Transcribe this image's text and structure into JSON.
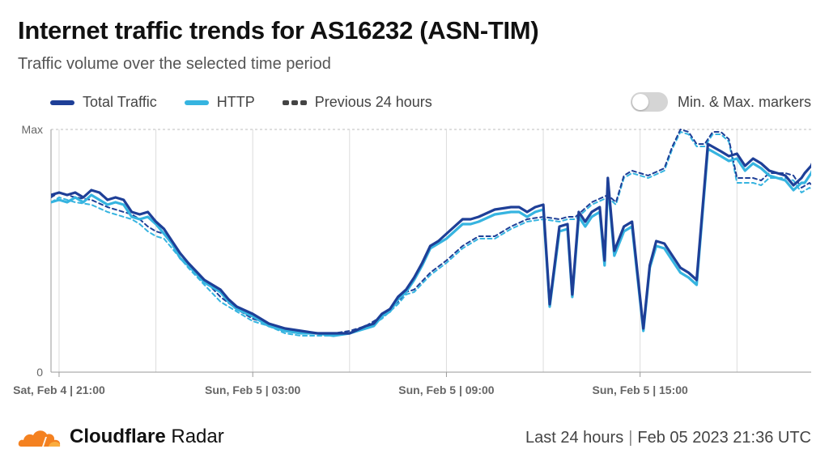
{
  "header": {
    "title": "Internet traffic trends for AS16232 (ASN-TIM)",
    "subtitle": "Traffic volume over the selected time period"
  },
  "legend": {
    "total": "Total Traffic",
    "http": "HTTP",
    "previous": "Previous 24 hours",
    "markers_label": "Min. & Max. markers",
    "markers_on": false
  },
  "colors": {
    "total": "#1e3f97",
    "http": "#36b4e0",
    "previous_total": "#1e3f97",
    "previous_http": "#36b4e0",
    "grid": "#dcdcdc"
  },
  "footer": {
    "brand_bold": "Cloudflare",
    "brand_light": "Radar",
    "range": "Last 24 hours",
    "timestamp": "Feb 05 2023 21:36 UTC"
  },
  "chart_data": {
    "type": "line",
    "y_tick_labels": [
      "Max",
      "0"
    ],
    "ylim": [
      0,
      100
    ],
    "x_tick_labels": [
      "Sat, Feb 4 | 21:00",
      "Sun, Feb 5 | 03:00",
      "Sun, Feb 5 | 09:00",
      "Sun, Feb 5 | 15:00"
    ],
    "x_range_hours": [
      -0.25,
      23.3
    ],
    "minor_grid_hours": [
      3,
      9,
      15,
      21
    ],
    "series": [
      {
        "name": "Total Traffic",
        "style": "solid",
        "color": "#1e3f97",
        "points": [
          [
            -0.25,
            73
          ],
          [
            0,
            74
          ],
          [
            0.25,
            73
          ],
          [
            0.5,
            74
          ],
          [
            0.75,
            72
          ],
          [
            1,
            75
          ],
          [
            1.25,
            74
          ],
          [
            1.5,
            71
          ],
          [
            1.75,
            72
          ],
          [
            2,
            71
          ],
          [
            2.25,
            66
          ],
          [
            2.5,
            65
          ],
          [
            2.75,
            66
          ],
          [
            3,
            62
          ],
          [
            3.25,
            59
          ],
          [
            3.5,
            54
          ],
          [
            3.75,
            49
          ],
          [
            4,
            45
          ],
          [
            4.5,
            38
          ],
          [
            5,
            34
          ],
          [
            5.25,
            30
          ],
          [
            5.5,
            27
          ],
          [
            6,
            24
          ],
          [
            6.5,
            20
          ],
          [
            7,
            18
          ],
          [
            7.5,
            17
          ],
          [
            8,
            16
          ],
          [
            8.5,
            16
          ],
          [
            9,
            16
          ],
          [
            9.5,
            19
          ],
          [
            9.75,
            20
          ],
          [
            10,
            24
          ],
          [
            10.25,
            26
          ],
          [
            10.5,
            31
          ],
          [
            10.75,
            34
          ],
          [
            11,
            39
          ],
          [
            11.25,
            45
          ],
          [
            11.5,
            52
          ],
          [
            11.75,
            54
          ],
          [
            12,
            57
          ],
          [
            12.5,
            63
          ],
          [
            12.75,
            63
          ],
          [
            13,
            64
          ],
          [
            13.5,
            67
          ],
          [
            14,
            68
          ],
          [
            14.25,
            68
          ],
          [
            14.5,
            66
          ],
          [
            14.75,
            68
          ],
          [
            15,
            69
          ],
          [
            15.2,
            28
          ],
          [
            15.5,
            60
          ],
          [
            15.75,
            61
          ],
          [
            15.9,
            32
          ],
          [
            16.1,
            66
          ],
          [
            16.3,
            62
          ],
          [
            16.5,
            66
          ],
          [
            16.75,
            68
          ],
          [
            16.9,
            46
          ],
          [
            17,
            80
          ],
          [
            17.2,
            50
          ],
          [
            17.5,
            60
          ],
          [
            17.75,
            62
          ],
          [
            18.1,
            18
          ],
          [
            18.3,
            44
          ],
          [
            18.5,
            54
          ],
          [
            18.75,
            53
          ],
          [
            19,
            48
          ],
          [
            19.25,
            43
          ],
          [
            19.5,
            41
          ],
          [
            19.75,
            38
          ],
          [
            20.1,
            94
          ],
          [
            20.5,
            91
          ],
          [
            20.75,
            89
          ],
          [
            21,
            90
          ],
          [
            21.25,
            85
          ],
          [
            21.5,
            88
          ],
          [
            21.75,
            86
          ],
          [
            22,
            83
          ],
          [
            22.5,
            81
          ],
          [
            22.75,
            77
          ],
          [
            23,
            80
          ],
          [
            23.1,
            82
          ],
          [
            23.3,
            85
          ],
          [
            23.5,
            91
          ],
          [
            23.7,
            90
          ]
        ]
      },
      {
        "name": "HTTP",
        "style": "solid",
        "color": "#36b4e0",
        "points": [
          [
            -0.25,
            70
          ],
          [
            0,
            71
          ],
          [
            0.25,
            70
          ],
          [
            0.5,
            72
          ],
          [
            0.75,
            70
          ],
          [
            1,
            73
          ],
          [
            1.25,
            71
          ],
          [
            1.5,
            69
          ],
          [
            1.75,
            70
          ],
          [
            2,
            69
          ],
          [
            2.25,
            64
          ],
          [
            2.5,
            63
          ],
          [
            2.75,
            64
          ],
          [
            3,
            61
          ],
          [
            3.25,
            57
          ],
          [
            3.5,
            53
          ],
          [
            3.75,
            47
          ],
          [
            4,
            44
          ],
          [
            4.5,
            37
          ],
          [
            5,
            33
          ],
          [
            5.25,
            29
          ],
          [
            5.5,
            26
          ],
          [
            6,
            23
          ],
          [
            6.5,
            19
          ],
          [
            7,
            17
          ],
          [
            7.5,
            16
          ],
          [
            8,
            16
          ],
          [
            8.5,
            15
          ],
          [
            9,
            16
          ],
          [
            9.5,
            18
          ],
          [
            9.75,
            19
          ],
          [
            10,
            23
          ],
          [
            10.25,
            25
          ],
          [
            10.5,
            30
          ],
          [
            10.75,
            33
          ],
          [
            11,
            38
          ],
          [
            11.25,
            44
          ],
          [
            11.5,
            51
          ],
          [
            11.75,
            53
          ],
          [
            12,
            55
          ],
          [
            12.5,
            61
          ],
          [
            12.75,
            61
          ],
          [
            13,
            62
          ],
          [
            13.5,
            65
          ],
          [
            14,
            66
          ],
          [
            14.25,
            66
          ],
          [
            14.5,
            64
          ],
          [
            14.75,
            66
          ],
          [
            15,
            67
          ],
          [
            15.2,
            27
          ],
          [
            15.5,
            58
          ],
          [
            15.75,
            59
          ],
          [
            15.9,
            31
          ],
          [
            16.1,
            64
          ],
          [
            16.3,
            60
          ],
          [
            16.5,
            64
          ],
          [
            16.75,
            66
          ],
          [
            16.9,
            44
          ],
          [
            17,
            78
          ],
          [
            17.2,
            48
          ],
          [
            17.5,
            58
          ],
          [
            17.75,
            60
          ],
          [
            18.1,
            17
          ],
          [
            18.3,
            43
          ],
          [
            18.5,
            52
          ],
          [
            18.75,
            51
          ],
          [
            19,
            46
          ],
          [
            19.25,
            41
          ],
          [
            19.5,
            39
          ],
          [
            19.75,
            36
          ],
          [
            20.1,
            92
          ],
          [
            20.5,
            89
          ],
          [
            20.75,
            87
          ],
          [
            21,
            88
          ],
          [
            21.25,
            83
          ],
          [
            21.5,
            86
          ],
          [
            21.75,
            84
          ],
          [
            22,
            81
          ],
          [
            22.5,
            79
          ],
          [
            22.75,
            75
          ],
          [
            23,
            78
          ],
          [
            23.1,
            78
          ],
          [
            23.3,
            82
          ],
          [
            23.5,
            88
          ],
          [
            23.7,
            88
          ]
        ]
      },
      {
        "name": "Previous 24 hours",
        "style": "dashed",
        "color": "#1e3f97",
        "points": [
          [
            -0.25,
            72
          ],
          [
            0,
            74
          ],
          [
            0.5,
            72
          ],
          [
            1,
            71
          ],
          [
            1.5,
            68
          ],
          [
            2,
            66
          ],
          [
            2.25,
            65
          ],
          [
            2.5,
            63
          ],
          [
            2.75,
            60
          ],
          [
            3,
            58
          ],
          [
            3.25,
            57
          ],
          [
            3.5,
            53
          ],
          [
            4,
            45
          ],
          [
            4.5,
            38
          ],
          [
            5,
            31
          ],
          [
            5.5,
            26
          ],
          [
            6,
            22
          ],
          [
            6.5,
            20
          ],
          [
            7,
            17
          ],
          [
            7.5,
            16
          ],
          [
            8,
            16
          ],
          [
            8.5,
            16
          ],
          [
            9,
            17
          ],
          [
            9.5,
            19
          ],
          [
            10,
            23
          ],
          [
            10.5,
            29
          ],
          [
            10.75,
            33
          ],
          [
            11,
            34
          ],
          [
            11.5,
            41
          ],
          [
            12,
            46
          ],
          [
            12.5,
            52
          ],
          [
            13,
            56
          ],
          [
            13.5,
            56
          ],
          [
            14,
            60
          ],
          [
            14.5,
            63
          ],
          [
            15,
            64
          ],
          [
            15.5,
            63
          ],
          [
            15.75,
            64
          ],
          [
            16,
            64
          ],
          [
            16.5,
            70
          ],
          [
            17,
            73
          ],
          [
            17.25,
            70
          ],
          [
            17.5,
            81
          ],
          [
            17.75,
            83
          ],
          [
            18,
            82
          ],
          [
            18.25,
            81
          ],
          [
            18.75,
            84
          ],
          [
            19,
            93
          ],
          [
            19.25,
            100
          ],
          [
            19.5,
            99
          ],
          [
            19.75,
            94
          ],
          [
            20,
            94
          ],
          [
            20.25,
            99
          ],
          [
            20.5,
            99
          ],
          [
            20.75,
            96
          ],
          [
            21,
            80
          ],
          [
            21.5,
            80
          ],
          [
            21.75,
            79
          ],
          [
            22,
            82
          ],
          [
            22.5,
            82
          ],
          [
            22.75,
            81
          ],
          [
            23,
            76
          ],
          [
            23.25,
            78
          ],
          [
            23.5,
            74
          ],
          [
            23.75,
            72
          ],
          [
            24,
            70
          ],
          [
            24.25,
            78
          ],
          [
            24.5,
            86
          ],
          [
            24.7,
            92
          ]
        ]
      },
      {
        "name": "Previous 24 hours (HTTP)",
        "style": "dashed",
        "color": "#36b4e0",
        "points": [
          [
            -0.25,
            70
          ],
          [
            0,
            72
          ],
          [
            0.5,
            70
          ],
          [
            1,
            69
          ],
          [
            1.5,
            66
          ],
          [
            2,
            64
          ],
          [
            2.25,
            63
          ],
          [
            2.5,
            61
          ],
          [
            2.75,
            58
          ],
          [
            3,
            56
          ],
          [
            3.25,
            55
          ],
          [
            3.5,
            51
          ],
          [
            4,
            43
          ],
          [
            4.5,
            36
          ],
          [
            5,
            29
          ],
          [
            5.5,
            25
          ],
          [
            6,
            21
          ],
          [
            6.5,
            19
          ],
          [
            7,
            16
          ],
          [
            7.5,
            15
          ],
          [
            8,
            15
          ],
          [
            8.5,
            15
          ],
          [
            9,
            16
          ],
          [
            9.5,
            18
          ],
          [
            10,
            22
          ],
          [
            10.5,
            28
          ],
          [
            10.75,
            32
          ],
          [
            11,
            33
          ],
          [
            11.5,
            40
          ],
          [
            12,
            45
          ],
          [
            12.5,
            51
          ],
          [
            13,
            55
          ],
          [
            13.5,
            55
          ],
          [
            14,
            59
          ],
          [
            14.5,
            62
          ],
          [
            15,
            63
          ],
          [
            15.5,
            62
          ],
          [
            15.75,
            63
          ],
          [
            16,
            63
          ],
          [
            16.5,
            69
          ],
          [
            17,
            72
          ],
          [
            17.25,
            69
          ],
          [
            17.5,
            80
          ],
          [
            17.75,
            82
          ],
          [
            18,
            81
          ],
          [
            18.25,
            80
          ],
          [
            18.75,
            83
          ],
          [
            19,
            92
          ],
          [
            19.25,
            99
          ],
          [
            19.5,
            98
          ],
          [
            19.75,
            93
          ],
          [
            20,
            93
          ],
          [
            20.25,
            98
          ],
          [
            20.5,
            98
          ],
          [
            20.75,
            95
          ],
          [
            21,
            78
          ],
          [
            21.5,
            78
          ],
          [
            21.75,
            77
          ],
          [
            22,
            80
          ],
          [
            22.5,
            80
          ],
          [
            22.75,
            79
          ],
          [
            23,
            74
          ],
          [
            23.25,
            76
          ],
          [
            23.5,
            72
          ],
          [
            23.75,
            70
          ],
          [
            24,
            68
          ],
          [
            24.25,
            76
          ],
          [
            24.5,
            84
          ],
          [
            24.7,
            90
          ]
        ]
      }
    ]
  }
}
